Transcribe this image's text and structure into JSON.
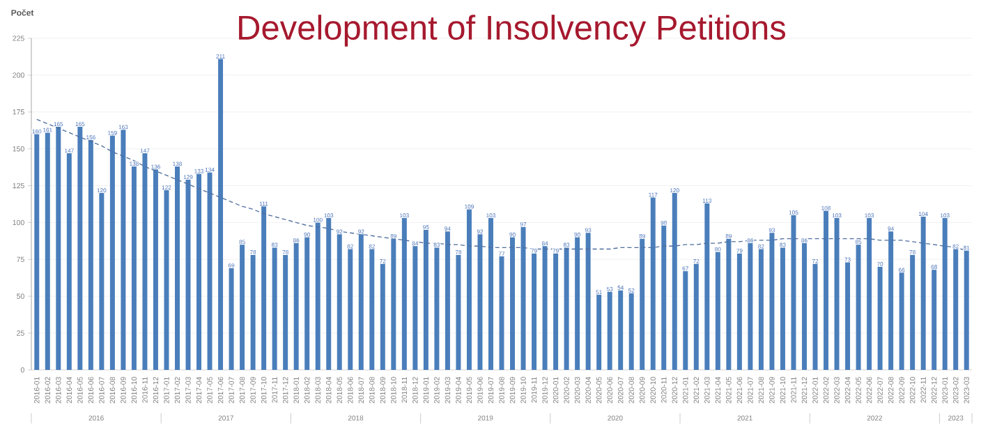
{
  "chart_data": {
    "type": "bar",
    "title": "Development of Insolvency Petitions",
    "ylabel": "Počet",
    "categories": [
      "2016-01",
      "2016-02",
      "2016-03",
      "2016-04",
      "2016-05",
      "2016-06",
      "2016-07",
      "2016-08",
      "2016-09",
      "2016-10",
      "2016-11",
      "2016-12",
      "2017-01",
      "2017-02",
      "2017-03",
      "2017-04",
      "2017-05",
      "2017-06",
      "2017-07",
      "2017-08",
      "2017-09",
      "2017-10",
      "2017-11",
      "2017-12",
      "2018-01",
      "2018-02",
      "2018-03",
      "2018-04",
      "2018-05",
      "2018-06",
      "2018-07",
      "2018-08",
      "2018-09",
      "2018-10",
      "2018-11",
      "2018-12",
      "2019-01",
      "2019-02",
      "2019-03",
      "2019-04",
      "2019-05",
      "2019-06",
      "2019-07",
      "2019-08",
      "2019-09",
      "2019-10",
      "2019-11",
      "2019-12",
      "2020-01",
      "2020-02",
      "2020-03",
      "2020-04",
      "2020-05",
      "2020-06",
      "2020-07",
      "2020-08",
      "2020-09",
      "2020-10",
      "2020-11",
      "2020-12",
      "2021-01",
      "2021-02",
      "2021-03",
      "2021-04",
      "2021-05",
      "2021-06",
      "2021-07",
      "2021-08",
      "2021-09",
      "2021-10",
      "2021-11",
      "2021-12",
      "2022-01",
      "2022-02",
      "2022-03",
      "2022-04",
      "2022-05",
      "2022-06",
      "2022-07",
      "2022-08",
      "2022-09",
      "2022-10",
      "2022-11",
      "2022-12",
      "2023-01",
      "2023-02",
      "2023-03"
    ],
    "series": [
      {
        "color": "#4a7ebb",
        "values": [
          160,
          161,
          165,
          147,
          165,
          156,
          120,
          159,
          163,
          138,
          147,
          136,
          122,
          138,
          129,
          133,
          134,
          211,
          69,
          85,
          78,
          111,
          83,
          78,
          86,
          90,
          100,
          103,
          92,
          82,
          92,
          82,
          72,
          89,
          103,
          84,
          95,
          83,
          94,
          78,
          109,
          92,
          103,
          77,
          90,
          97,
          79,
          84,
          79,
          83,
          90,
          93,
          51,
          53,
          54,
          52,
          89,
          117,
          98,
          120,
          67,
          72,
          113,
          80,
          89,
          79,
          86,
          82,
          93,
          83,
          105,
          86,
          72,
          108,
          103,
          73,
          85,
          103,
          70,
          94,
          66,
          78,
          104,
          68,
          103,
          82,
          81
        ],
        "value_labels": [
          "160",
          "161",
          "165",
          "147",
          "165",
          "156",
          "120",
          "159",
          "163",
          "138",
          "147",
          "136",
          "122",
          "138",
          "129",
          "133",
          "134",
          "211",
          "69",
          "85",
          "78",
          "111",
          "83",
          "78",
          "86",
          "90",
          "100",
          "103",
          "92",
          "82",
          "92",
          "82",
          "72",
          "89",
          "103",
          "84",
          "95",
          "83",
          "94",
          "78",
          "109",
          "92",
          "103",
          "77",
          "90",
          "97",
          "79",
          "84",
          "79",
          "83",
          "90",
          "93",
          "51",
          "53",
          "54",
          "52",
          "89",
          "117",
          "98",
          "120",
          "67",
          "72",
          "113",
          "80",
          "89",
          "79",
          "86",
          "82",
          "93",
          "83",
          "105",
          "86",
          "72",
          "108",
          "103",
          "73",
          "85",
          "103",
          "70",
          "94",
          "66",
          "78",
          "104",
          "68",
          "103",
          "82",
          "81"
        ]
      },
      {
        "type": "line",
        "color": "#4f6e9f",
        "line_style": "dashed",
        "values": [
          170,
          167,
          164,
          161,
          158,
          155,
          152,
          148,
          145,
          142,
          138,
          135,
          132,
          129,
          126,
          123,
          120,
          117,
          114,
          111,
          109,
          106,
          104,
          102,
          100,
          98,
          97,
          96,
          94,
          93,
          92,
          91,
          90,
          89,
          88,
          87,
          86,
          86,
          85,
          85,
          84,
          84,
          83,
          83,
          83,
          83,
          82,
          82,
          82,
          82,
          82,
          82,
          82,
          82,
          83,
          83,
          83,
          83,
          84,
          84,
          85,
          85,
          86,
          86,
          87,
          87,
          88,
          88,
          88,
          89,
          89,
          89,
          89,
          89,
          89,
          89,
          89,
          89,
          88,
          88,
          88,
          87,
          86,
          85,
          84,
          83,
          81
        ]
      }
    ],
    "ylim": [
      0,
      225
    ],
    "yticks": [
      0,
      25,
      50,
      75,
      100,
      125,
      150,
      175,
      200,
      225
    ],
    "grid": "y",
    "annotations": [
      "2016",
      "2017",
      "2018",
      "2019",
      "2020",
      "2021",
      "2022",
      "2023"
    ]
  }
}
